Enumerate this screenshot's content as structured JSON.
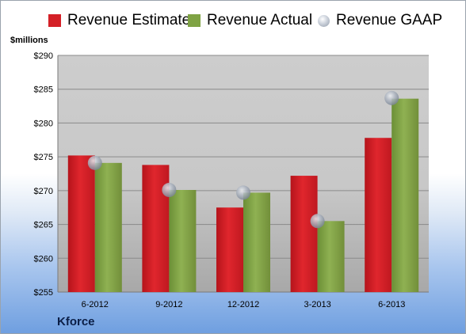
{
  "chart_data": {
    "type": "bar",
    "title": "",
    "xlabel": "",
    "ylabel": "$millions",
    "company": "Kforce",
    "categories": [
      "6-2012",
      "9-2012",
      "12-2012",
      "3-2013",
      "6-2013"
    ],
    "series": [
      {
        "name": "Revenue Estimate",
        "kind": "bar",
        "color": "#d42027",
        "values": [
          275.2,
          273.8,
          267.5,
          272.2,
          277.8
        ]
      },
      {
        "name": "Revenue Actual",
        "kind": "bar",
        "color": "#7fa344",
        "values": [
          274.1,
          270.1,
          269.7,
          265.5,
          283.6
        ]
      },
      {
        "name": "Revenue GAAP",
        "kind": "marker",
        "color": "#a0a8b4",
        "values": [
          274.1,
          270.1,
          269.7,
          265.5,
          283.7
        ]
      }
    ],
    "ylim": [
      255,
      290
    ],
    "yticks": [
      255,
      260,
      265,
      270,
      275,
      280,
      285,
      290
    ],
    "ytick_labels": [
      "$255",
      "$260",
      "$265",
      "$270",
      "$275",
      "$280",
      "$285",
      "$290"
    ],
    "grid": true,
    "legend_position": "top"
  }
}
